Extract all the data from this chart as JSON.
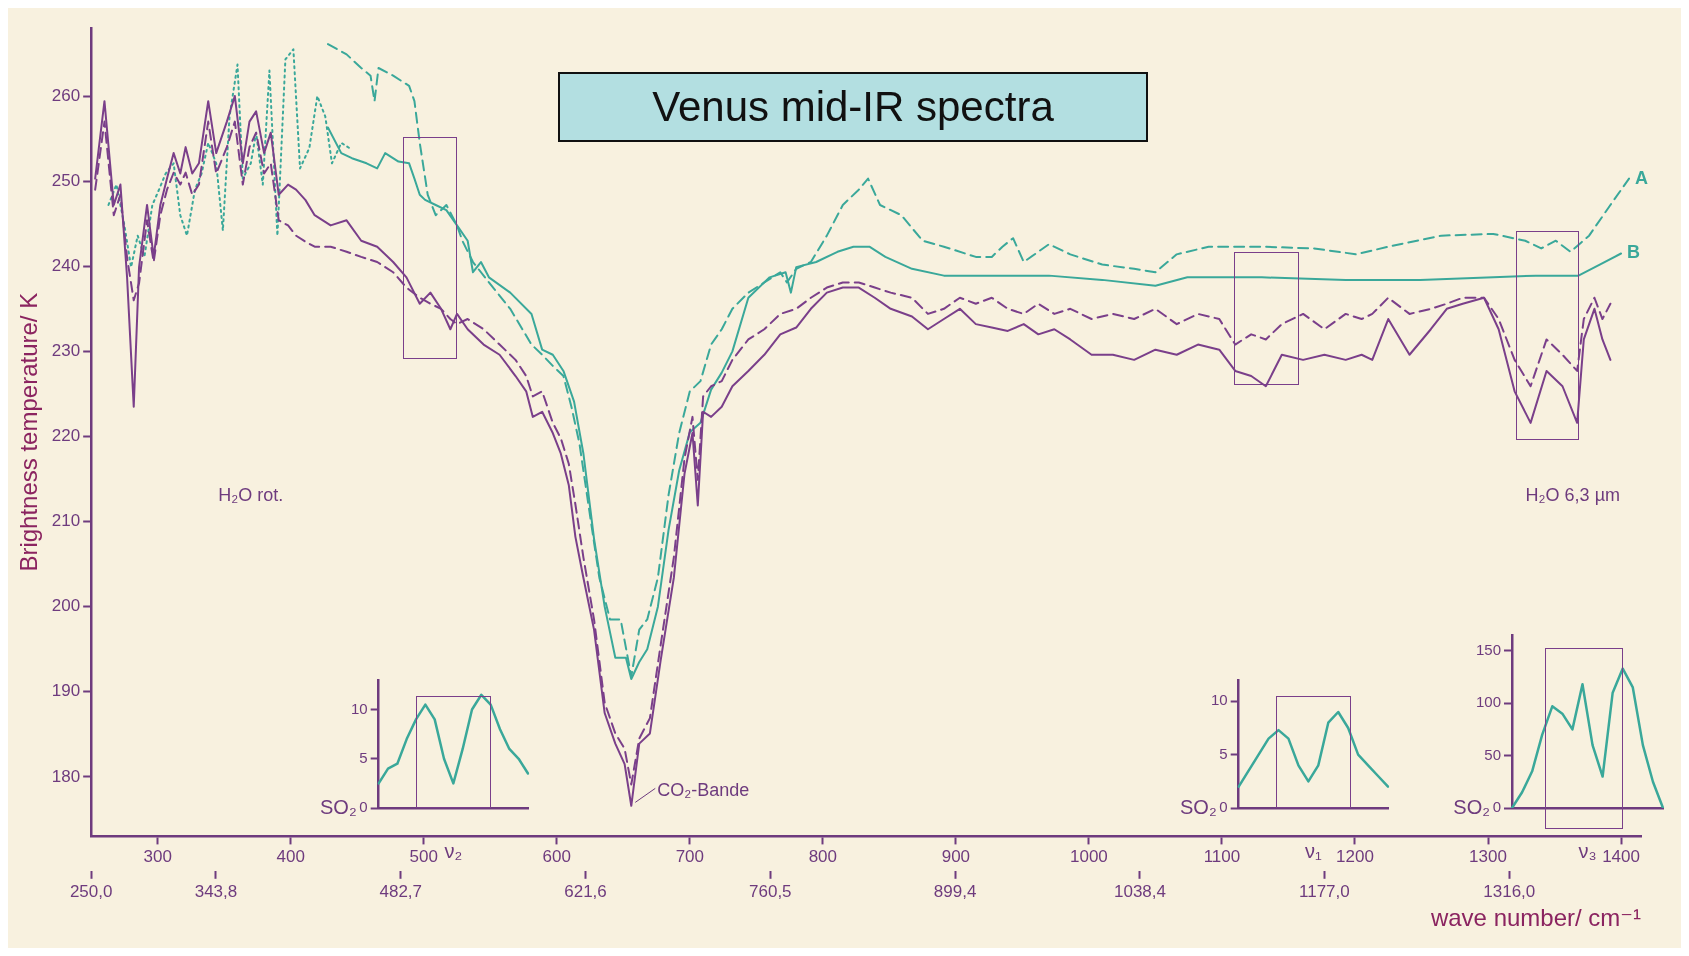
{
  "chart_data": [
    {
      "type": "line",
      "title": "Venus mid-IR spectra",
      "ylabel": "Brightness temperature/ K",
      "xlabel": "wave number/ cm⁻¹",
      "xlim": [
        250,
        1415
      ],
      "xticks": [
        300,
        400,
        500,
        600,
        700,
        800,
        900,
        1000,
        1100,
        1200,
        1300,
        1400
      ],
      "x2lim": [
        250,
        1415
      ],
      "x2ticks": [
        {
          "value": 250,
          "label": "250,0"
        },
        {
          "value": 343.8,
          "label": "343,8"
        },
        {
          "value": 482.7,
          "label": "482,7"
        },
        {
          "value": 621.6,
          "label": "621,6"
        },
        {
          "value": 760.5,
          "label": "760,5"
        },
        {
          "value": 899.4,
          "label": "899,4"
        },
        {
          "value": 1038.4,
          "label": "1038,4"
        },
        {
          "value": 1177,
          "label": "1177,0"
        },
        {
          "value": 1316,
          "label": "1316,0"
        }
      ],
      "ylim": [
        173,
        268
      ],
      "yticks": [
        180,
        190,
        200,
        210,
        220,
        230,
        240,
        250,
        260
      ],
      "grid": false,
      "legend": false,
      "marker": "none",
      "series": [
        {
          "color": "#7a3f8a",
          "line_style": "solid",
          "x": [
            253,
            260,
            267,
            272,
            277,
            282,
            286,
            292,
            297,
            302,
            307,
            312,
            317,
            321,
            326,
            331,
            338,
            344,
            352,
            358,
            364,
            369,
            374,
            380,
            385,
            391,
            398,
            404,
            411,
            418,
            430,
            442,
            453,
            465,
            477,
            487,
            497,
            505,
            513,
            520,
            525,
            533,
            545,
            557,
            569,
            577,
            582,
            589,
            597,
            603,
            609,
            614,
            620,
            628,
            636,
            644,
            651,
            656,
            662,
            670,
            678,
            688,
            696,
            702,
            706,
            710,
            716,
            724,
            732,
            744,
            756,
            768,
            780,
            791,
            803,
            815,
            827,
            839,
            851,
            867,
            879,
            891,
            903,
            915,
            927,
            939,
            951,
            962,
            974,
            986,
            1002,
            1018,
            1034,
            1050,
            1066,
            1082,
            1098,
            1110,
            1122,
            1133,
            1145,
            1161,
            1177,
            1193,
            1205,
            1213,
            1225,
            1241,
            1257,
            1269,
            1281,
            1297,
            1308,
            1320,
            1332,
            1344,
            1356,
            1367,
            1372,
            1380,
            1386,
            1392
          ],
          "values": [
            250.3,
            259.4,
            247.2,
            249.6,
            238.7,
            223.5,
            239.9,
            247.2,
            241.1,
            247.2,
            250.3,
            253.3,
            250.9,
            254,
            250.9,
            252.1,
            259.4,
            253.3,
            257,
            260,
            252.1,
            257,
            258.2,
            253.3,
            255.7,
            248.4,
            249.6,
            249,
            247.8,
            246,
            244.8,
            245.4,
            243,
            242.3,
            240.5,
            238.7,
            235.6,
            236.9,
            235,
            232.6,
            234.4,
            232.6,
            230.8,
            229.6,
            227.1,
            225.3,
            222.3,
            222.9,
            220.4,
            218,
            214.3,
            208.2,
            203.4,
            197.3,
            187.5,
            183.9,
            181.5,
            176.6,
            183.9,
            185.1,
            193.6,
            203.4,
            215.6,
            220.4,
            211.9,
            222.9,
            222.3,
            223.5,
            225.9,
            227.7,
            229.6,
            232,
            232.8,
            235,
            236.9,
            237.5,
            237.5,
            236.3,
            235,
            234.1,
            232.6,
            233.8,
            235,
            233.2,
            232.8,
            232.4,
            233.2,
            232,
            232.6,
            231.4,
            229.6,
            229.6,
            229,
            230.2,
            229.6,
            230.8,
            230.2,
            227.7,
            227.1,
            225.9,
            229.6,
            229,
            229.6,
            229,
            229.6,
            229,
            233.8,
            229.6,
            232.6,
            235,
            235.6,
            236.3,
            232.6,
            225.3,
            221.6,
            227.7,
            225.9,
            221.6,
            231.4,
            235,
            231.4,
            229
          ]
        },
        {
          "color": "#7a3f8a",
          "line_style": "dashed",
          "x": [
            253,
            260,
            267,
            272,
            277,
            282,
            286,
            292,
            297,
            302,
            307,
            312,
            317,
            321,
            326,
            331,
            338,
            344,
            352,
            358,
            364,
            369,
            374,
            380,
            385,
            391,
            398,
            404,
            411,
            418,
            430,
            442,
            453,
            465,
            477,
            487,
            497,
            505,
            513,
            520,
            525,
            533,
            545,
            557,
            569,
            577,
            582,
            589,
            597,
            603,
            609,
            614,
            620,
            628,
            636,
            644,
            651,
            656,
            662,
            670,
            678,
            688,
            696,
            702,
            706,
            710,
            716,
            724,
            732,
            744,
            756,
            768,
            780,
            791,
            803,
            815,
            827,
            839,
            851,
            867,
            879,
            891,
            903,
            915,
            927,
            939,
            951,
            962,
            974,
            986,
            1002,
            1018,
            1034,
            1050,
            1066,
            1082,
            1098,
            1110,
            1122,
            1133,
            1145,
            1161,
            1177,
            1193,
            1205,
            1213,
            1225,
            1241,
            1257,
            1269,
            1281,
            1297,
            1308,
            1320,
            1332,
            1344,
            1356,
            1367,
            1372,
            1380,
            1386,
            1392
          ],
          "values": [
            249,
            257,
            246,
            248.4,
            241,
            236,
            238,
            245.4,
            240.5,
            246,
            249,
            251,
            249.6,
            251,
            248.4,
            249.6,
            257,
            250.9,
            254,
            257,
            249.6,
            254,
            255.7,
            250.9,
            252.1,
            245.4,
            244.8,
            243.6,
            242.9,
            242.3,
            242.3,
            241.7,
            241.1,
            240.5,
            239.3,
            237.5,
            236.3,
            235.6,
            235,
            233.8,
            233.2,
            233.8,
            232.6,
            230.8,
            229,
            227.1,
            224.7,
            225.3,
            221.6,
            219.8,
            216.8,
            212,
            205.8,
            198.5,
            188.7,
            185.1,
            183.3,
            179.1,
            184.5,
            186.9,
            195.4,
            205.8,
            217.4,
            222.3,
            214.9,
            224.7,
            225.9,
            226.5,
            229,
            231.4,
            232.6,
            234.4,
            235,
            236.3,
            237.5,
            238.1,
            238.1,
            237.5,
            236.9,
            236.3,
            234.4,
            235,
            236.3,
            235.6,
            236.3,
            235,
            234.4,
            235.6,
            234.4,
            235,
            233.8,
            234.4,
            233.8,
            235,
            233.2,
            234.4,
            233.8,
            230.8,
            232,
            231.4,
            233.2,
            234.4,
            232.6,
            234.4,
            233.8,
            234.4,
            236.3,
            234.4,
            235,
            235.6,
            236.3,
            236.3,
            233.8,
            229,
            225.9,
            231.4,
            229.6,
            227.7,
            233.8,
            236.3,
            233.8,
            235.6
          ]
        },
        {
          "color": "#3aa89a",
          "line_style": "dotted",
          "x": [
            263,
            269,
            275,
            280,
            285,
            290,
            296,
            301,
            306,
            312,
            317,
            322,
            328,
            333,
            338,
            344,
            349,
            354,
            360,
            364,
            370,
            374,
            379,
            384,
            390,
            396,
            402,
            407,
            414,
            420,
            426,
            431,
            438,
            444
          ],
          "values": [
            247.2,
            249.6,
            244.8,
            239.9,
            243.6,
            241.1,
            247.2,
            249,
            250.9,
            252.1,
            246,
            243.6,
            249,
            250.9,
            254.5,
            252.1,
            244.2,
            257.6,
            263.7,
            250.3,
            252.1,
            255.7,
            249.6,
            263,
            243.6,
            264.3,
            265.5,
            251.5,
            253.9,
            260,
            257.6,
            252.1,
            254.5,
            253.9
          ]
        },
        {
          "name": "B",
          "color": "#3aa89a",
          "line_style": "solid",
          "x": [
            428,
            438,
            446,
            457,
            465,
            471,
            481,
            489,
            493,
            497,
            501,
            509,
            517,
            525,
            533,
            537,
            543,
            549,
            565,
            581,
            589,
            597,
            605,
            613,
            620,
            628,
            636,
            644,
            652,
            656,
            662,
            668,
            676,
            684,
            692,
            700,
            708,
            716,
            724,
            732,
            744,
            760,
            772,
            776,
            780,
            795,
            811,
            823,
            835,
            847,
            867,
            891,
            939,
            970,
            1010,
            1050,
            1074,
            1130,
            1193,
            1249,
            1304,
            1336,
            1368,
            1384,
            1400
          ],
          "values": [
            256.3,
            253.3,
            252.7,
            252.1,
            251.5,
            253.3,
            252.3,
            252.1,
            250.3,
            248.4,
            247.8,
            247.2,
            246.6,
            244.8,
            243,
            239.3,
            240.5,
            238.7,
            236.9,
            234.4,
            230.2,
            229.6,
            227.7,
            224.1,
            218,
            208,
            200,
            194,
            194,
            191.5,
            193.5,
            195,
            200,
            209,
            216,
            220.5,
            221.6,
            225.5,
            227.5,
            230,
            236.3,
            238.7,
            239.3,
            236.9,
            239.9,
            240.5,
            241.7,
            242.3,
            242.3,
            241.1,
            239.7,
            238.9,
            238.9,
            238.9,
            238.4,
            237.7,
            238.7,
            238.7,
            238.4,
            238.4,
            238.7,
            238.9,
            238.9,
            240.2,
            241.5
          ]
        },
        {
          "name": "A",
          "color": "#3aa89a",
          "line_style": "dashed",
          "x": [
            428,
            442,
            453,
            460,
            463,
            466,
            477,
            489,
            493,
            497,
            503,
            509,
            517,
            525,
            529,
            537,
            549,
            565,
            581,
            589,
            597,
            605,
            611,
            617,
            625,
            632,
            640,
            648,
            656,
            662,
            668,
            676,
            684,
            692,
            700,
            708,
            716,
            724,
            732,
            744,
            756,
            768,
            773,
            780,
            791,
            803,
            815,
            827,
            834,
            843,
            859,
            875,
            891,
            915,
            927,
            935,
            943,
            951,
            970,
            986,
            1010,
            1034,
            1050,
            1066,
            1090,
            1130,
            1169,
            1201,
            1225,
            1265,
            1304,
            1328,
            1340,
            1351,
            1362,
            1376,
            1392,
            1406
          ],
          "values": [
            266.1,
            264.9,
            263.3,
            262.4,
            259.4,
            263.3,
            262.4,
            261.2,
            259.4,
            254.5,
            248.4,
            246,
            247.2,
            244.8,
            243,
            240.5,
            238.1,
            235,
            230.8,
            229.6,
            228.3,
            227.1,
            223.5,
            219.2,
            210.7,
            203.4,
            198.5,
            198.5,
            191.8,
            197.3,
            198.5,
            203.4,
            213.1,
            220.4,
            225.3,
            226.5,
            230.8,
            232.6,
            235,
            236.9,
            238.1,
            239.3,
            238.1,
            239.7,
            240.5,
            243.6,
            247.2,
            249,
            250.3,
            247.2,
            246,
            243,
            242.3,
            241.1,
            241.1,
            242.3,
            243.3,
            240.5,
            242.6,
            241.4,
            240.2,
            239.7,
            239.3,
            241.4,
            242.3,
            242.3,
            242.1,
            241.4,
            242.3,
            243.6,
            243.8,
            243,
            242.1,
            243,
            241.7,
            243.6,
            247.2,
            250.3
          ]
        }
      ],
      "annotations": [
        "H₂O rot.",
        "H₂O 6,3 µm",
        {
          "text": "CO₂-Bande",
          "x": 656,
          "y": 177
        }
      ]
    },
    {
      "type": "line",
      "xlabel": "ν₂",
      "ylabel": "SO₂",
      "categories": [
        null,
        null,
        null,
        null,
        null,
        null,
        null,
        null,
        null,
        null,
        null,
        null,
        null,
        null,
        null,
        null,
        null
      ],
      "ylim": [
        0,
        13
      ],
      "yticks": [
        0,
        5,
        10
      ],
      "grid": false,
      "legend": false,
      "marker": "none",
      "series": [
        {
          "color": "#3aa89a",
          "values": [
            2.5,
            4,
            4.5,
            7,
            9,
            10.5,
            9,
            5,
            2.5,
            6,
            10,
            11.5,
            10.5,
            8,
            6,
            5,
            3.5
          ]
        }
      ]
    },
    {
      "type": "line",
      "xlabel": "ν₁",
      "ylabel": "SO₂",
      "categories": [
        null,
        null,
        null,
        null,
        null,
        null,
        null,
        null,
        null,
        null,
        null,
        null,
        null,
        null,
        null,
        null
      ],
      "ylim": [
        0,
        12
      ],
      "yticks": [
        0,
        5,
        10
      ],
      "grid": false,
      "legend": false,
      "marker": "none",
      "series": [
        {
          "color": "#3aa89a",
          "values": [
            2,
            3.5,
            5,
            6.5,
            7.3,
            6.5,
            4,
            2.5,
            4,
            8,
            9,
            7.5,
            5,
            4,
            3,
            2
          ]
        }
      ]
    },
    {
      "type": "line",
      "xlabel": "ν₃",
      "ylabel": "SO₂",
      "categories": [
        null,
        null,
        null,
        null,
        null,
        null,
        null,
        null,
        null,
        null,
        null,
        null,
        null,
        null,
        null,
        null
      ],
      "ylim": [
        0,
        165
      ],
      "yticks": [
        0,
        50,
        100,
        150
      ],
      "grid": false,
      "legend": false,
      "marker": "none",
      "series": [
        {
          "color": "#3aa89a",
          "values": [
            0,
            15,
            35,
            70,
            97,
            90,
            75,
            118,
            60,
            30,
            110,
            133,
            115,
            60,
            25,
            0
          ]
        }
      ]
    }
  ]
}
